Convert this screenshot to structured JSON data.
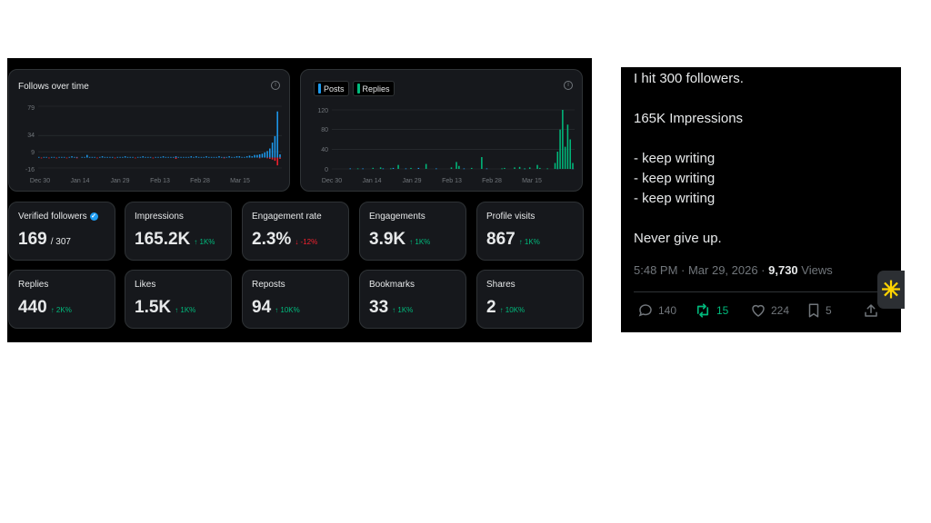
{
  "analytics": {
    "follows_chart": {
      "title": "Follows over time",
      "y_ticks": [
        "79",
        "34",
        "9",
        "-16"
      ],
      "x_ticks": [
        "Dec 30",
        "Jan 14",
        "Jan 29",
        "Feb 13",
        "Feb 28",
        "Mar 15"
      ],
      "chart_data": {
        "type": "bar",
        "title": "Follows over time",
        "ylim": [
          -16,
          79
        ],
        "x_ticks": [
          "Dec 30",
          "Jan 14",
          "Jan 29",
          "Feb 13",
          "Feb 28",
          "Mar 15"
        ],
        "series": [
          {
            "color": "#1d9bf0",
            "values": [
              1,
              0,
              1,
              1,
              0,
              1,
              1,
              0,
              1,
              1,
              1,
              0,
              1,
              2,
              1,
              1,
              0,
              1,
              1,
              4,
              1,
              1,
              1,
              0,
              1,
              2,
              1,
              1,
              1,
              1,
              0,
              1,
              1,
              1,
              2,
              1,
              1,
              1,
              0,
              1,
              1,
              2,
              1,
              1,
              1,
              0,
              1,
              1,
              1,
              2,
              1,
              1,
              1,
              1,
              2,
              1,
              1,
              1,
              1,
              1,
              2,
              1,
              2,
              1,
              1,
              1,
              2,
              1,
              1,
              1,
              1,
              2,
              1,
              1,
              1,
              2,
              1,
              1,
              2,
              2,
              1,
              1,
              2,
              3,
              2,
              4,
              4,
              5,
              6,
              8,
              10,
              14,
              23,
              33,
              71,
              5
            ]
          },
          {
            "color": "#f4212e",
            "values": [
              0,
              -1,
              0,
              0,
              -1,
              0,
              0,
              -1,
              0,
              0,
              0,
              -1,
              0,
              0,
              0,
              -1,
              0,
              0,
              0,
              0,
              0,
              0,
              0,
              -1,
              0,
              0,
              0,
              0,
              0,
              0,
              -1,
              0,
              0,
              0,
              0,
              0,
              0,
              0,
              -1,
              0,
              0,
              0,
              0,
              0,
              0,
              -1,
              0,
              0,
              0,
              0,
              0,
              0,
              0,
              0,
              -2,
              0,
              0,
              0,
              0,
              0,
              0,
              0,
              0,
              0,
              0,
              0,
              0,
              0,
              0,
              0,
              0,
              0,
              0,
              -1,
              0,
              0,
              0,
              0,
              0,
              0,
              0,
              0,
              0,
              0,
              0,
              0,
              0,
              -1,
              0,
              0,
              -1,
              -2,
              -3,
              -5,
              -12,
              -2
            ]
          }
        ]
      }
    },
    "posts_chart": {
      "legend": [
        "Posts",
        "Replies"
      ],
      "y_ticks": [
        "120",
        "80",
        "40",
        "0"
      ],
      "x_ticks": [
        "Dec 30",
        "Jan 14",
        "Jan 29",
        "Feb 13",
        "Feb 28",
        "Mar 15"
      ],
      "chart_data": {
        "type": "bar",
        "ylim": [
          0,
          120
        ],
        "x_ticks": [
          "Dec 30",
          "Jan 14",
          "Jan 29",
          "Feb 13",
          "Feb 28",
          "Mar 15"
        ],
        "series": [
          {
            "name": "Posts",
            "color": "#1d9bf0",
            "values": [
              0,
              0,
              0,
              0,
              0,
              0,
              0,
              1,
              0,
              0,
              0,
              0,
              1,
              0,
              0,
              0,
              2,
              0,
              0,
              0,
              1,
              0,
              0,
              0,
              2,
              0,
              0,
              0,
              0,
              1,
              0,
              0,
              0,
              0,
              2,
              0,
              0,
              0,
              0,
              0,
              0,
              1,
              0,
              0,
              0,
              0,
              0,
              0,
              0,
              0,
              0,
              0,
              1,
              0,
              0,
              0,
              0,
              0,
              0,
              0,
              0,
              1,
              0,
              0,
              0,
              0,
              0,
              0,
              0,
              0,
              0,
              0,
              0,
              0,
              0,
              0,
              1,
              0,
              0,
              0,
              0,
              0,
              0,
              0,
              0,
              0,
              0,
              0,
              0,
              1,
              0,
              0,
              0,
              0,
              0,
              1
            ]
          },
          {
            "name": "Replies",
            "color": "#00ba7c",
            "values": [
              0,
              0,
              0,
              0,
              0,
              0,
              0,
              0,
              0,
              0,
              1,
              0,
              0,
              0,
              0,
              0,
              2,
              0,
              0,
              3,
              0,
              0,
              0,
              1,
              0,
              0,
              8,
              0,
              0,
              0,
              0,
              2,
              0,
              0,
              0,
              0,
              0,
              10,
              0,
              0,
              0,
              0,
              0,
              0,
              0,
              0,
              0,
              3,
              0,
              14,
              6,
              0,
              0,
              0,
              0,
              2,
              0,
              0,
              0,
              24,
              0,
              0,
              0,
              0,
              0,
              0,
              0,
              1,
              2,
              0,
              0,
              0,
              3,
              0,
              4,
              0,
              1,
              0,
              3,
              0,
              0,
              8,
              2,
              0,
              0,
              1,
              0,
              0,
              12,
              35,
              80,
              120,
              45,
              90,
              60,
              12
            ]
          }
        ]
      }
    },
    "stats": [
      {
        "label": "Verified followers",
        "value": "169",
        "total": "/ 307",
        "change": "",
        "direction": "none"
      },
      {
        "label": "Impressions",
        "value": "165.2K",
        "change": "↑ 1K%",
        "direction": "up"
      },
      {
        "label": "Engagement rate",
        "value": "2.3%",
        "change": "↓ -12%",
        "direction": "down"
      },
      {
        "label": "Engagements",
        "value": "3.9K",
        "change": "↑ 1K%",
        "direction": "up"
      },
      {
        "label": "Profile visits",
        "value": "867",
        "change": "↑ 1K%",
        "direction": "up"
      },
      {
        "label": "Replies",
        "value": "440",
        "change": "↑ 2K%",
        "direction": "up"
      },
      {
        "label": "Likes",
        "value": "1.5K",
        "change": "↑ 1K%",
        "direction": "up"
      },
      {
        "label": "Reposts",
        "value": "94",
        "change": "↑ 10K%",
        "direction": "up"
      },
      {
        "label": "Bookmarks",
        "value": "33",
        "change": "↑ 1K%",
        "direction": "up"
      },
      {
        "label": "Shares",
        "value": "2",
        "change": "↑ 10K%",
        "direction": "up"
      }
    ],
    "colors": {
      "up": "#00ba7c",
      "down": "#f4212e",
      "accent": "#1d9bf0"
    }
  },
  "tweet": {
    "lines": [
      "I hit 300 followers.",
      "165K Impressions",
      "- keep writing",
      "- keep writing",
      "- keep writing",
      "Never give up."
    ],
    "time": "5:48 PM · Mar 29, 2026 · ",
    "views_count": "9,730",
    "views_label": " Views",
    "actions": {
      "replies": "140",
      "reposts": "15",
      "likes": "224",
      "bookmarks": "5"
    }
  }
}
